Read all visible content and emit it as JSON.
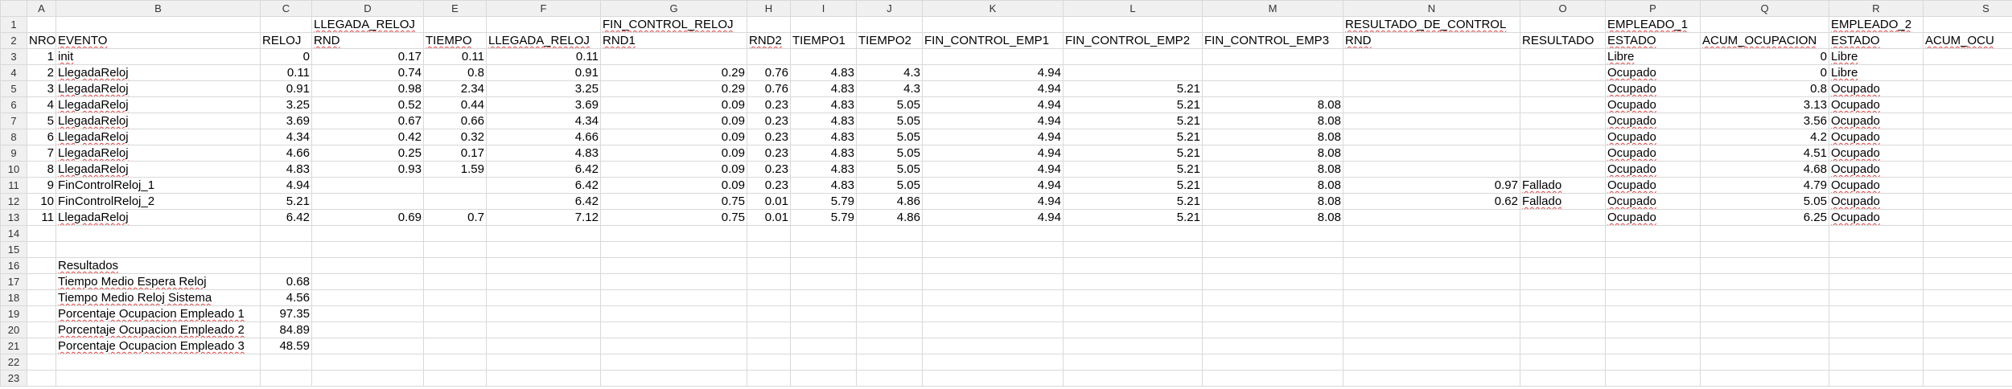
{
  "columns": [
    {
      "letter": "A",
      "w": 36
    },
    {
      "letter": "B",
      "w": 254
    },
    {
      "letter": "C",
      "w": 64
    },
    {
      "letter": "D",
      "w": 139
    },
    {
      "letter": "E",
      "w": 78
    },
    {
      "letter": "F",
      "w": 142
    },
    {
      "letter": "G",
      "w": 182
    },
    {
      "letter": "H",
      "w": 54
    },
    {
      "letter": "I",
      "w": 82
    },
    {
      "letter": "J",
      "w": 82
    },
    {
      "letter": "K",
      "w": 175
    },
    {
      "letter": "L",
      "w": 173
    },
    {
      "letter": "M",
      "w": 175
    },
    {
      "letter": "N",
      "w": 220
    },
    {
      "letter": "O",
      "w": 106
    },
    {
      "letter": "P",
      "w": 118
    },
    {
      "letter": "Q",
      "w": 160
    },
    {
      "letter": "R",
      "w": 117
    },
    {
      "letter": "S",
      "w": 156
    }
  ],
  "rows": [
    {
      "n": "1",
      "cells": {
        "D": "LLEGADA_RELOJ",
        "G": "FIN_CONTROL_RELOJ",
        "N": "RESULTADO_DE_CONTROL",
        "P": "EMPLEADO_1",
        "R": "EMPLEADO_2"
      }
    },
    {
      "n": "2",
      "cells": {
        "A": "NRO",
        "B": "EVENTO",
        "C": "RELOJ",
        "D": "RND",
        "E": "TIEMPO",
        "F": "LLEGADA_RELOJ",
        "G": "RND1",
        "H": "RND2",
        "I": "TIEMPO1",
        "J": "TIEMPO2",
        "K": "FIN_CONTROL_EMP1",
        "L": "FIN_CONTROL_EMP2",
        "M": "FIN_CONTROL_EMP3",
        "N": "RND",
        "O": "RESULTADO",
        "P": "ESTADO",
        "Q": "ACUM_OCUPACION",
        "R": "ESTADO",
        "S": "ACUM_OCU"
      }
    },
    {
      "n": "3",
      "cells": {
        "A": "1",
        "B": "init",
        "C": "0",
        "D": "0.17",
        "E": "0.11",
        "F": "0.11",
        "P": "Libre",
        "Q": "0",
        "R": "Libre"
      }
    },
    {
      "n": "4",
      "cells": {
        "A": "2",
        "B": "LlegadaReloj",
        "C": "0.11",
        "D": "0.74",
        "E": "0.8",
        "F": "0.91",
        "G": "0.29",
        "H": "0.76",
        "I": "4.83",
        "J": "4.3",
        "K": "4.94",
        "P": "Ocupado",
        "Q": "0",
        "R": "Libre"
      }
    },
    {
      "n": "5",
      "cells": {
        "A": "3",
        "B": "LlegadaReloj",
        "C": "0.91",
        "D": "0.98",
        "E": "2.34",
        "F": "3.25",
        "G": "0.29",
        "H": "0.76",
        "I": "4.83",
        "J": "4.3",
        "K": "4.94",
        "L": "5.21",
        "P": "Ocupado",
        "Q": "0.8",
        "R": "Ocupado"
      }
    },
    {
      "n": "6",
      "cells": {
        "A": "4",
        "B": "LlegadaReloj",
        "C": "3.25",
        "D": "0.52",
        "E": "0.44",
        "F": "3.69",
        "G": "0.09",
        "H": "0.23",
        "I": "4.83",
        "J": "5.05",
        "K": "4.94",
        "L": "5.21",
        "M": "8.08",
        "P": "Ocupado",
        "Q": "3.13",
        "R": "Ocupado"
      }
    },
    {
      "n": "7",
      "cells": {
        "A": "5",
        "B": "LlegadaReloj",
        "C": "3.69",
        "D": "0.67",
        "E": "0.66",
        "F": "4.34",
        "G": "0.09",
        "H": "0.23",
        "I": "4.83",
        "J": "5.05",
        "K": "4.94",
        "L": "5.21",
        "M": "8.08",
        "P": "Ocupado",
        "Q": "3.56",
        "R": "Ocupado"
      }
    },
    {
      "n": "8",
      "cells": {
        "A": "6",
        "B": "LlegadaReloj",
        "C": "4.34",
        "D": "0.42",
        "E": "0.32",
        "F": "4.66",
        "G": "0.09",
        "H": "0.23",
        "I": "4.83",
        "J": "5.05",
        "K": "4.94",
        "L": "5.21",
        "M": "8.08",
        "P": "Ocupado",
        "Q": "4.2",
        "R": "Ocupado"
      }
    },
    {
      "n": "9",
      "cells": {
        "A": "7",
        "B": "LlegadaReloj",
        "C": "4.66",
        "D": "0.25",
        "E": "0.17",
        "F": "4.83",
        "G": "0.09",
        "H": "0.23",
        "I": "4.83",
        "J": "5.05",
        "K": "4.94",
        "L": "5.21",
        "M": "8.08",
        "P": "Ocupado",
        "Q": "4.51",
        "R": "Ocupado"
      }
    },
    {
      "n": "10",
      "cells": {
        "A": "8",
        "B": "LlegadaReloj",
        "C": "4.83",
        "D": "0.93",
        "E": "1.59",
        "F": "6.42",
        "G": "0.09",
        "H": "0.23",
        "I": "4.83",
        "J": "5.05",
        "K": "4.94",
        "L": "5.21",
        "M": "8.08",
        "P": "Ocupado",
        "Q": "4.68",
        "R": "Ocupado"
      }
    },
    {
      "n": "11",
      "cells": {
        "A": "9",
        "B": "FinControlReloj_1",
        "C": "4.94",
        "F": "6.42",
        "G": "0.09",
        "H": "0.23",
        "I": "4.83",
        "J": "5.05",
        "K": "4.94",
        "L": "5.21",
        "M": "8.08",
        "N": "0.97",
        "O": "Fallado",
        "P": "Ocupado",
        "Q": "4.79",
        "R": "Ocupado"
      }
    },
    {
      "n": "12",
      "cells": {
        "A": "10",
        "B": "FinControlReloj_2",
        "C": "5.21",
        "F": "6.42",
        "G": "0.75",
        "H": "0.01",
        "I": "5.79",
        "J": "4.86",
        "K": "4.94",
        "L": "5.21",
        "M": "8.08",
        "N": "0.62",
        "O": "Fallado",
        "P": "Ocupado",
        "Q": "5.05",
        "R": "Ocupado"
      }
    },
    {
      "n": "13",
      "cells": {
        "A": "11",
        "B": "LlegadaReloj",
        "C": "6.42",
        "D": "0.69",
        "E": "0.7",
        "F": "7.12",
        "G": "0.75",
        "H": "0.01",
        "I": "5.79",
        "J": "4.86",
        "K": "4.94",
        "L": "5.21",
        "M": "8.08",
        "P": "Ocupado",
        "Q": "6.25",
        "R": "Ocupado"
      }
    },
    {
      "n": "14",
      "cells": {}
    },
    {
      "n": "15",
      "cells": {}
    },
    {
      "n": "16",
      "cells": {
        "B": "Resultados"
      }
    },
    {
      "n": "17",
      "cells": {
        "B": "Tiempo Medio Espera Reloj",
        "C": "0.68"
      }
    },
    {
      "n": "18",
      "cells": {
        "B": "Tiempo Medio Reloj Sistema",
        "C": "4.56"
      }
    },
    {
      "n": "19",
      "cells": {
        "B": "Porcentaje Ocupacion Empleado 1",
        "C": "97.35"
      }
    },
    {
      "n": "20",
      "cells": {
        "B": "Porcentaje Ocupacion Empleado 2",
        "C": "84.89"
      }
    },
    {
      "n": "21",
      "cells": {
        "B": "Porcentaje Ocupacion Empleado 3",
        "C": "48.59"
      }
    },
    {
      "n": "22",
      "cells": {}
    },
    {
      "n": "23",
      "cells": {}
    }
  ]
}
